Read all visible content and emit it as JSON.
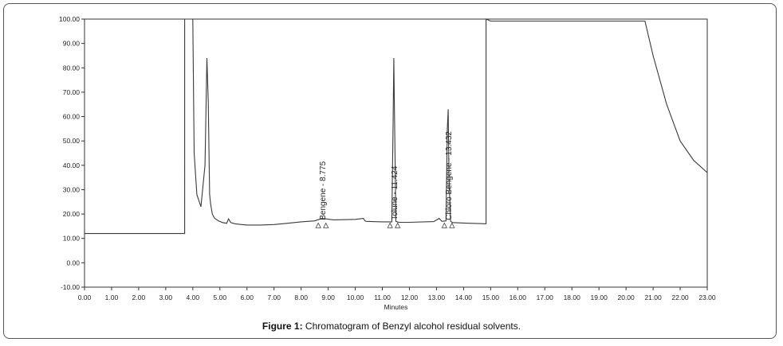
{
  "caption": {
    "prefix": "Figure 1:",
    "text": " Chromatogram of Benzyl alcohol residual solvents."
  },
  "chart_data": {
    "type": "line",
    "xlabel": "Minutes",
    "ylabel": "",
    "xlim": [
      0,
      23
    ],
    "ylim": [
      -10,
      100
    ],
    "x_ticks": [
      "0.00",
      "1.00",
      "2.00",
      "3.00",
      "4.00",
      "5.00",
      "6.00",
      "7.00",
      "8.00",
      "9.00",
      "10.00",
      "11.00",
      "12.00",
      "13.00",
      "14.00",
      "15.00",
      "16.00",
      "17.00",
      "18.00",
      "19.00",
      "20.00",
      "21.00",
      "22.00",
      "23.00"
    ],
    "y_ticks": [
      "-10.00",
      "0.00",
      "10.00",
      "20.00",
      "30.00",
      "40.00",
      "50.00",
      "60.00",
      "70.00",
      "80.00",
      "90.00",
      "100.00"
    ],
    "line_color": "#3a3a3a",
    "series": [
      {
        "x": [
          0,
          3.7,
          3.7,
          3.75,
          3.75,
          3.95,
          4.0,
          4.05,
          4.15,
          4.3,
          4.45,
          4.52,
          4.57,
          4.62,
          4.66,
          4.72,
          4.8,
          4.95,
          5.1,
          5.25,
          5.32,
          5.4,
          5.55,
          5.8,
          6.0,
          6.5,
          7.0,
          7.5,
          8.0,
          8.5,
          8.775,
          9.2,
          10.0,
          10.3,
          10.35,
          10.4,
          11.0,
          11.35,
          11.4,
          11.424,
          11.45,
          11.5,
          11.6,
          12.0,
          12.9,
          13.1,
          13.2,
          13.35,
          13.4,
          13.432,
          13.46,
          13.52,
          13.6,
          14.0,
          14.8,
          14.83,
          14.83,
          15.0,
          20.68,
          20.7,
          21.0,
          21.5,
          22.0,
          22.5,
          23.0
        ],
        "y": [
          12,
          12,
          100,
          100,
          100,
          100,
          100,
          45,
          28,
          23,
          40,
          84,
          66,
          28,
          24,
          20,
          18.3,
          17.2,
          16.5,
          16.2,
          18,
          16.5,
          16.0,
          15.7,
          15.5,
          15.5,
          15.7,
          16.2,
          16.8,
          17.2,
          18.2,
          17.6,
          17.8,
          18.2,
          17.3,
          17.0,
          16.8,
          16.8,
          60,
          84,
          60,
          17.0,
          16.6,
          16.6,
          16.9,
          18.2,
          17.0,
          17.2,
          55,
          63,
          35,
          17.0,
          16.5,
          16.3,
          16.0,
          16.0,
          100,
          99.2,
          99.2,
          99.2,
          85,
          65,
          50,
          42,
          37
        ]
      }
    ],
    "peaks": [
      {
        "label": "Bengene - 8.775",
        "rt": 8.775
      },
      {
        "label": "Tolune - 11.424",
        "rt": 11.424
      },
      {
        "label": "Chloro Bengene - 13.432",
        "rt": 13.432
      }
    ]
  }
}
